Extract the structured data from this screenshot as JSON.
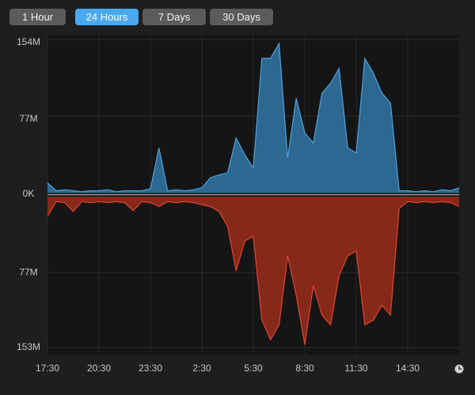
{
  "toolbar": {
    "buttons": [
      "1 Hour",
      "24 Hours",
      "7 Days",
      "30 Days"
    ],
    "selected": 1
  },
  "chart_data": {
    "type": "mirror-area",
    "x": [
      0,
      0.5,
      1,
      1.5,
      2,
      2.5,
      3,
      3.5,
      4,
      4.5,
      5,
      5.5,
      6,
      6.5,
      7,
      7.5,
      8,
      8.5,
      9,
      9.5,
      10,
      10.5,
      11,
      11.5,
      12,
      12.5,
      13,
      13.5,
      14,
      14.5,
      15,
      15.5,
      16,
      16.5,
      17,
      17.5,
      18,
      18.5,
      19,
      19.5,
      20,
      20.5,
      21,
      21.5,
      22,
      22.5,
      23,
      23.5,
      24
    ],
    "xlim": [
      0,
      24
    ],
    "xticks": [
      {
        "value": 0,
        "label": "17:30"
      },
      {
        "value": 3,
        "label": "20:30"
      },
      {
        "value": 6,
        "label": "23:30"
      },
      {
        "value": 9,
        "label": "2:30"
      },
      {
        "value": 12,
        "label": "5:30"
      },
      {
        "value": 15,
        "label": "8:30"
      },
      {
        "value": 18,
        "label": "11:30"
      },
      {
        "value": 21,
        "label": "14:30"
      }
    ],
    "ylim": [
      0,
      154
    ],
    "yticks": [
      {
        "value": 0,
        "label": "0K"
      },
      {
        "value": 77,
        "label": "77M"
      },
      {
        "value": 154,
        "label": "154M"
      }
    ],
    "y2lim": [
      0,
      153
    ],
    "y2ticks": [
      {
        "value": 77,
        "label": "77M"
      },
      {
        "value": 153,
        "label": "153M"
      }
    ],
    "grid": true,
    "series": [
      {
        "color": "#4da3e0",
        "fill": "#2d6891",
        "values": [
          10,
          2,
          3,
          2,
          1,
          2,
          2,
          3,
          1,
          2,
          2,
          2,
          4,
          45,
          2,
          3,
          2,
          3,
          5,
          15,
          18,
          20,
          55,
          38,
          25,
          135,
          135,
          150,
          35,
          95,
          60,
          50,
          100,
          110,
          125,
          45,
          40,
          135,
          120,
          100,
          90,
          2,
          2,
          1,
          2,
          1,
          3,
          2,
          5
        ]
      },
      {
        "color": "#e2472f",
        "fill": "#86281a",
        "axis": "y2",
        "values": [
          20,
          5,
          6,
          15,
          5,
          6,
          5,
          6,
          5,
          6,
          14,
          5,
          6,
          10,
          5,
          6,
          5,
          6,
          8,
          10,
          15,
          30,
          75,
          45,
          40,
          125,
          145,
          130,
          60,
          100,
          150,
          90,
          120,
          130,
          80,
          60,
          55,
          130,
          125,
          110,
          120,
          12,
          5,
          6,
          5,
          6,
          5,
          6,
          10
        ]
      }
    ]
  }
}
